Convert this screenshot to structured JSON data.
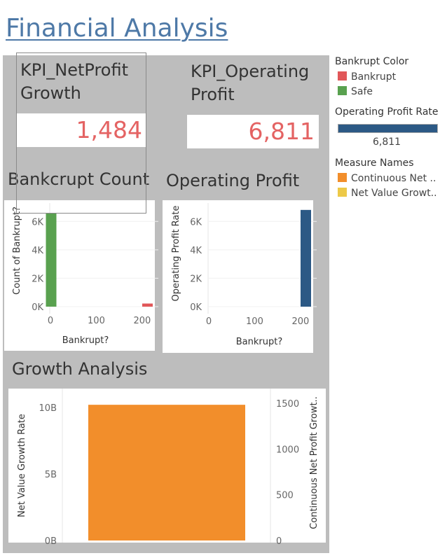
{
  "page": {
    "title": "Financial Analysis"
  },
  "kpis": {
    "net_profit_growth": {
      "label_line1": "KPI_NetProfit",
      "label_line2": "Growth",
      "value": "1,484"
    },
    "operating_profit": {
      "label_line1": "KPI_Operating",
      "label_line2": "Profit",
      "value": "6,811"
    }
  },
  "sections": {
    "bankrupt_count": "Bankcrupt Count",
    "operating_profit": "Operating Profit",
    "growth_analysis": "Growth Analysis"
  },
  "colors": {
    "safe": "#59a14f",
    "bankrupt": "#e15759",
    "operating": "#2c5985",
    "continuous": "#f28e2b",
    "net_value": "#edc948",
    "kpi_value": "#e46363",
    "title": "#4e79a7"
  },
  "legend": {
    "bankrupt_color": {
      "title": "Bankrupt Color",
      "items": [
        {
          "label": "Bankrupt",
          "color": "#e15759"
        },
        {
          "label": "Safe",
          "color": "#59a14f"
        }
      ]
    },
    "operating_profit_rate": {
      "title": "Operating Profit Rate",
      "value_label": "6,811",
      "color": "#2c5985"
    },
    "measure_names": {
      "title": "Measure Names",
      "items": [
        {
          "label": "Continuous Net ..",
          "color": "#f28e2b"
        },
        {
          "label": "Net Value Growt..",
          "color": "#edc948"
        }
      ]
    }
  },
  "chart_data": [
    {
      "id": "bankrupt_count",
      "type": "bar",
      "title": "Bankcrupt Count",
      "xlabel": "Bankrupt?",
      "ylabel": "Count of Bankrupt?",
      "xticks": [
        "0",
        "100",
        "200"
      ],
      "yticks": [
        "0K",
        "2K",
        "4K",
        "6K"
      ],
      "xlim": [
        0,
        220
      ],
      "ylim": [
        0,
        7000
      ],
      "series": [
        {
          "name": "Safe",
          "color": "#59a14f",
          "points": [
            {
              "x": 0,
              "y": 6600
            }
          ]
        },
        {
          "name": "Bankrupt",
          "color": "#e15759",
          "points": [
            {
              "x": 220,
              "y": 220
            }
          ]
        }
      ]
    },
    {
      "id": "operating_profit",
      "type": "bar",
      "title": "Operating Profit",
      "xlabel": "Bankrupt?",
      "ylabel": "Operating Profit Rate",
      "xticks": [
        "0",
        "100",
        "200"
      ],
      "yticks": [
        "0K",
        "2K",
        "4K",
        "6K"
      ],
      "xlim": [
        0,
        220
      ],
      "ylim": [
        0,
        7000
      ],
      "series": [
        {
          "name": "Operating Profit Rate",
          "color": "#2c5985",
          "points": [
            {
              "x": 220,
              "y": 6811
            }
          ]
        }
      ]
    },
    {
      "id": "growth_analysis",
      "type": "bar",
      "title": "Growth Analysis",
      "ylabel": "Net Value Growth Rate",
      "ylabel_right": "Continuous Net Profit Growt..",
      "yticks": [
        "0B",
        "5B",
        "10B"
      ],
      "yticks_right": [
        "0",
        "500",
        "1000",
        "1500"
      ],
      "ylim": [
        0,
        11000000000
      ],
      "ylim_right": [
        0,
        1600
      ],
      "series": [
        {
          "name": "Continuous Net ..",
          "color": "#f28e2b",
          "axis": "right",
          "value": 1484
        }
      ]
    }
  ]
}
